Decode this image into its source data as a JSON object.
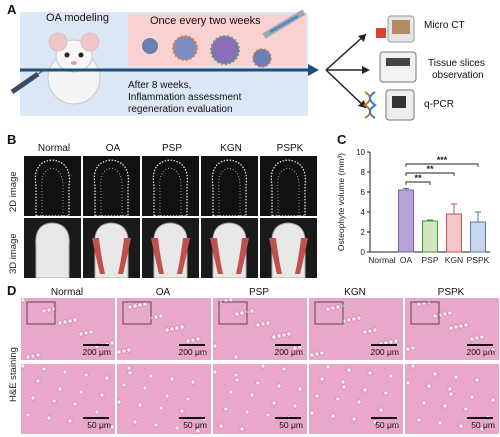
{
  "panels": {
    "a": "A",
    "b": "B",
    "c": "C",
    "d": "D"
  },
  "schematic": {
    "oa_modeling": "OA modeling",
    "once_every": "Once every two weeks",
    "after_weeks": "After 8 weeks,",
    "inflammation": "Inflammation assessment",
    "regeneration": "regeneration evaluation",
    "micro_ct": "Micro CT",
    "tissue_slices_1": "Tissue slices",
    "tissue_slices_2": "observation",
    "qpcr": "q-PCR"
  },
  "groups": [
    "Normal",
    "OA",
    "PSP",
    "KGN",
    "PSPK"
  ],
  "row_labels": {
    "image_2d": "2D image",
    "image_3d": "3D image",
    "he": "H&E staining"
  },
  "scale_bars": {
    "top": "200 μm",
    "bottom": "50 μm"
  },
  "colors": {
    "bg_pink": "#f9d1d0",
    "bg_blue": "#dbe7f5",
    "arrow": "#1f4e79",
    "bone_red": "#c0504d",
    "he_pink": "#e9a7c9"
  },
  "chart_data": {
    "type": "bar",
    "ylabel": "Osteophyte volume (mm³)",
    "categories": [
      "Normal",
      "OA",
      "PSP",
      "KGN",
      "PSPK"
    ],
    "values": [
      0,
      6.2,
      3.1,
      3.8,
      3.0
    ],
    "errors": [
      0,
      0.15,
      0.1,
      1.0,
      1.0
    ],
    "ylim": [
      0,
      10
    ],
    "yticks": [
      0,
      2,
      4,
      6,
      8,
      10
    ],
    "bar_colors": [
      "#ffffff",
      "#b7a4d6",
      "#cfe8c2",
      "#f2c9c9",
      "#c9d6ef"
    ],
    "bar_edges": [
      "#555555",
      "#7a5ca8",
      "#4a8c3a",
      "#c0504d",
      "#5876b8"
    ],
    "significance": [
      "**",
      "**",
      "***"
    ]
  }
}
